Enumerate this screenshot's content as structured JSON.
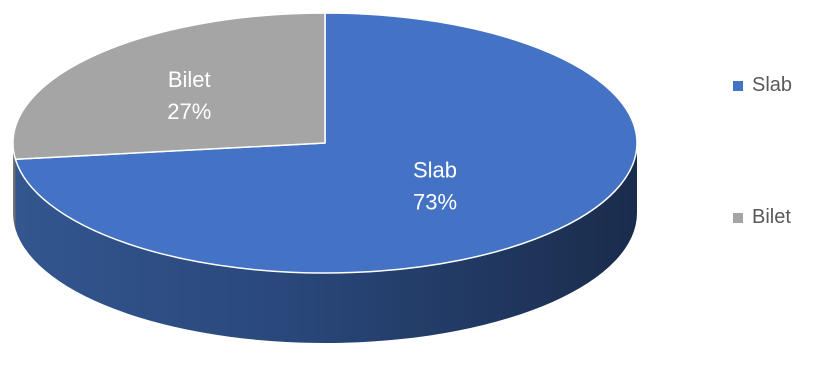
{
  "chart_data": {
    "type": "pie",
    "categories": [
      "Slab",
      "Bilet"
    ],
    "values": [
      73,
      27
    ],
    "value_labels": [
      "73%",
      "27%"
    ],
    "colors": [
      "#4472c4",
      "#a5a5a5"
    ],
    "legend_position": "right",
    "three_d": true
  }
}
